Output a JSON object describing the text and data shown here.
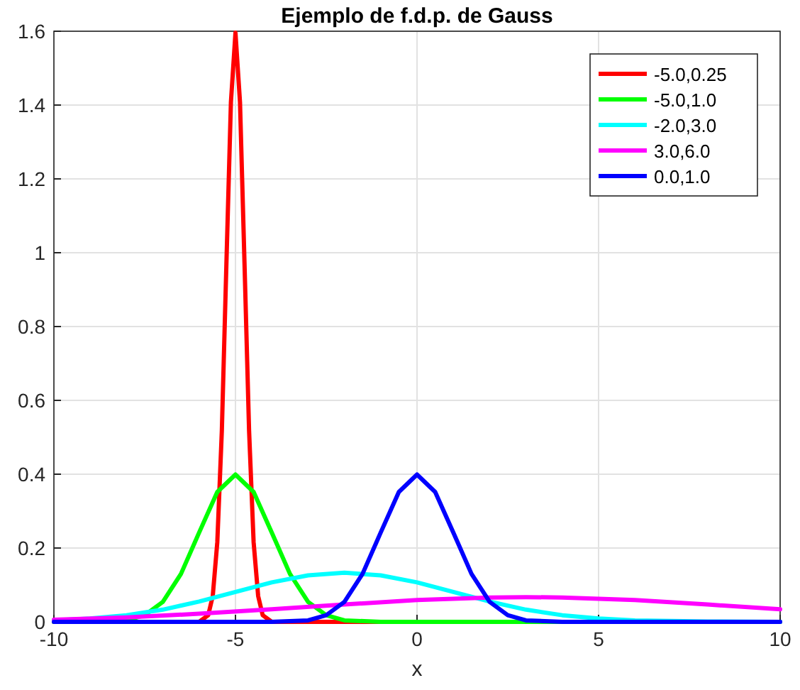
{
  "chart_data": {
    "type": "line",
    "title": "Ejemplo de f.d.p. de Gauss",
    "xlabel": "x",
    "xlim": [
      -10,
      10
    ],
    "ylim": [
      0,
      1.6
    ],
    "xticks": [
      -10,
      -5,
      0,
      5,
      10
    ],
    "yticks": [
      0,
      0.2,
      0.4,
      0.6,
      0.8,
      1,
      1.2,
      1.4,
      1.6
    ],
    "grid": true,
    "legend": "top right",
    "line_style": "solid",
    "marker": "none",
    "series": [
      {
        "name": "-5.0,0.25",
        "color": "#ff0000",
        "x": [
          -10,
          -6,
          -5.75,
          -5.625,
          -5.5,
          -5.375,
          -5.25,
          -5.125,
          -5,
          -4.875,
          -4.75,
          -4.625,
          -4.5,
          -4.375,
          -4.25,
          -4,
          10
        ],
        "values": [
          0,
          0,
          0.018,
          0.07,
          0.216,
          0.518,
          0.968,
          1.408,
          1.596,
          1.408,
          0.968,
          0.518,
          0.216,
          0.07,
          0.018,
          0,
          0
        ]
      },
      {
        "name": "-5.0,1.0",
        "color": "#00ff00",
        "x": [
          -10,
          -9,
          -8,
          -7.5,
          -7,
          -6.5,
          -6,
          -5.5,
          -5,
          -4.5,
          -4,
          -3.5,
          -3,
          -2.5,
          -2,
          -1,
          10
        ],
        "values": [
          0,
          0,
          0.004,
          0.018,
          0.054,
          0.13,
          0.242,
          0.352,
          0.399,
          0.352,
          0.242,
          0.13,
          0.054,
          0.018,
          0.004,
          0,
          0
        ]
      },
      {
        "name": "-2.0,3.0",
        "color": "#00ffff",
        "x": [
          -10,
          -9,
          -8,
          -7,
          -6,
          -5,
          -4,
          -3,
          -2,
          -1,
          0,
          1,
          2,
          3,
          4,
          5,
          6,
          8,
          10
        ],
        "values": [
          0.004,
          0.009,
          0.018,
          0.033,
          0.055,
          0.081,
          0.107,
          0.126,
          0.133,
          0.126,
          0.107,
          0.081,
          0.055,
          0.033,
          0.018,
          0.009,
          0.004,
          0.001,
          0
        ]
      },
      {
        "name": "3.0,6.0",
        "color": "#ff00ff",
        "x": [
          -10,
          -8,
          -6,
          -4,
          -2,
          0,
          2,
          3,
          4,
          6,
          8,
          10
        ],
        "values": [
          0.006,
          0.012,
          0.022,
          0.034,
          0.047,
          0.059,
          0.066,
          0.067,
          0.066,
          0.059,
          0.047,
          0.034
        ]
      },
      {
        "name": "0.0,1.0",
        "color": "#0000ff",
        "x": [
          -10,
          -5,
          -4,
          -3,
          -2.5,
          -2,
          -1.5,
          -1,
          -0.5,
          0,
          0.5,
          1,
          1.5,
          2,
          2.5,
          3,
          4,
          5,
          10
        ],
        "values": [
          0,
          0,
          0,
          0.004,
          0.018,
          0.054,
          0.13,
          0.242,
          0.352,
          0.399,
          0.352,
          0.242,
          0.13,
          0.054,
          0.018,
          0.004,
          0,
          0,
          0
        ]
      }
    ]
  }
}
